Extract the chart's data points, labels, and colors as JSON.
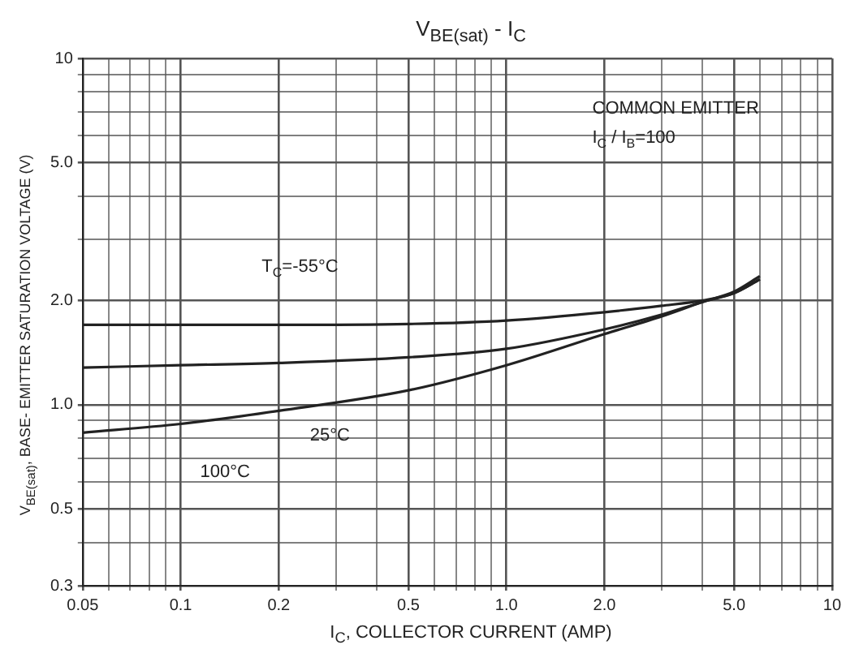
{
  "chart_data": {
    "type": "line",
    "title": "V$_{BE(sat)}$ - I$_{C}$",
    "xlabel": "I$_{C}$, COLLECTOR CURRENT (AMP)",
    "ylabel": "V$_{BE(sat)}$, BASE- EMITTER SATURATION VOLTAGE (V)",
    "log": "xy",
    "grid": true,
    "legend": false,
    "marker": "none",
    "line_style": "solid",
    "xlim": [
      0.05,
      10
    ],
    "xticks": [
      0.05,
      {
        "value": 0.06,
        "label": null
      },
      {
        "value": 0.07,
        "label": null
      },
      {
        "value": 0.08,
        "label": null
      },
      {
        "value": 0.09,
        "label": null
      },
      0.1,
      0.2,
      {
        "value": 0.3,
        "label": null
      },
      {
        "value": 0.4,
        "label": null
      },
      0.5,
      {
        "value": 0.6,
        "label": null
      },
      {
        "value": 0.7,
        "label": null
      },
      {
        "value": 0.8,
        "label": null
      },
      {
        "value": 0.9,
        "label": null
      },
      {
        "value": 1,
        "label": "1.0"
      },
      {
        "value": 2,
        "label": "2.0"
      },
      {
        "value": 3,
        "label": null
      },
      {
        "value": 4,
        "label": null
      },
      {
        "value": 5,
        "label": "5.0"
      },
      {
        "value": 6,
        "label": null
      },
      {
        "value": 7,
        "label": null
      },
      {
        "value": 8,
        "label": null
      },
      {
        "value": 9,
        "label": null
      },
      10
    ],
    "ylim": [
      0.3,
      10
    ],
    "yticks": [
      0.3,
      {
        "value": 0.4,
        "label": null
      },
      0.5,
      {
        "value": 0.6,
        "label": null
      },
      {
        "value": 0.7,
        "label": null
      },
      {
        "value": 0.8,
        "label": null
      },
      {
        "value": 0.9,
        "label": null
      },
      {
        "value": 1,
        "label": "1.0"
      },
      {
        "value": 2,
        "label": "2.0"
      },
      {
        "value": 3,
        "label": null
      },
      {
        "value": 4,
        "label": null
      },
      {
        "value": 5,
        "label": "5.0"
      },
      {
        "value": 6,
        "label": null
      },
      {
        "value": 7,
        "label": null
      },
      {
        "value": 8,
        "label": null
      },
      {
        "value": 9,
        "label": null
      },
      10
    ],
    "x": [
      0.05,
      0.1,
      0.2,
      0.5,
      1,
      2,
      3,
      4,
      5,
      6
    ],
    "series": [
      {
        "color": "#222222",
        "values": [
          1.7,
          1.7,
          1.7,
          1.71,
          1.75,
          1.85,
          1.93,
          2.0,
          2.1,
          2.3
        ]
      },
      {
        "color": "#222222",
        "values": [
          1.28,
          1.3,
          1.32,
          1.37,
          1.45,
          1.65,
          1.82,
          1.98,
          2.1,
          2.3
        ]
      },
      {
        "color": "#222222",
        "values": [
          0.83,
          0.88,
          0.96,
          1.1,
          1.3,
          1.6,
          1.8,
          1.98,
          2.12,
          2.35
        ]
      }
    ],
    "annotations": [
      "COMMON EMITTER",
      "I$_{C}$ / I$_{B}$=100",
      "T$_{C}$=-55°C",
      "25°C",
      "100°C"
    ]
  }
}
